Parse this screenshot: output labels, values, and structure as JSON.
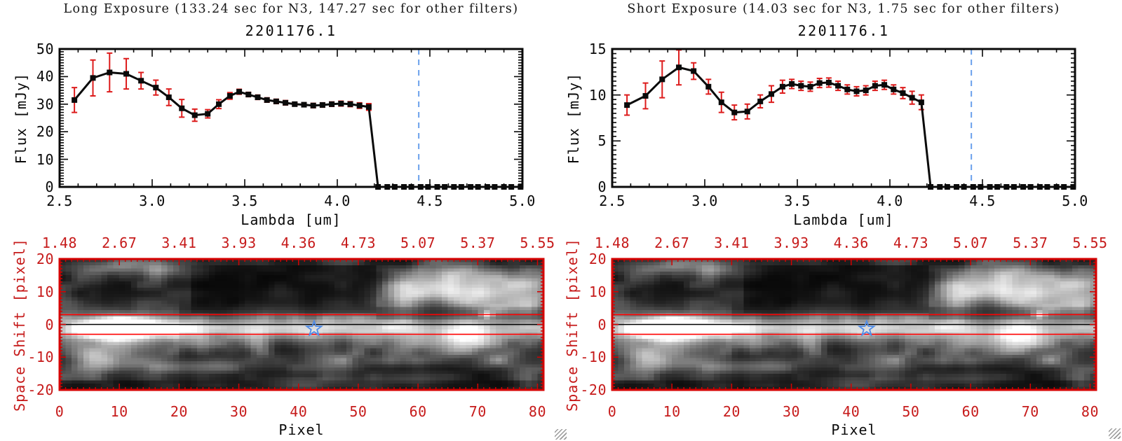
{
  "colors": {
    "background": "#ffffff",
    "black": "#0a0a0a",
    "red_text": "#c61a1a",
    "red_box": "#d40000",
    "red_line": "#ff0000",
    "red_dash": "#ff2222",
    "error_bar_red": "#dd1c1c",
    "blue_marker": "#4f8ce8",
    "blue_dash": "#6aa0ec",
    "grip_gray": "#9b9b9b"
  },
  "chart_data": [
    {
      "type": "line",
      "id": "spectrum_long",
      "panel": "left",
      "suptitle": "Long Exposure (133.24 sec for N3, 147.27 sec for other filters)",
      "title": "2201176.1",
      "xlabel": "Lambda [um]",
      "ylabel": "Flux [mJy]",
      "xlim": [
        2.5,
        5.0
      ],
      "ylim": [
        0,
        50
      ],
      "xticks": [
        "2.5",
        "3.0",
        "3.5",
        "4.0",
        "4.5",
        "5.0"
      ],
      "yticks": [
        "0",
        "10",
        "20",
        "30",
        "40",
        "50"
      ],
      "x_minor_step": 0.1,
      "y_minor_step": 1,
      "grid": false,
      "marker": "filled-square",
      "x": [
        2.58,
        2.68,
        2.77,
        2.86,
        2.94,
        3.02,
        3.09,
        3.16,
        3.23,
        3.3,
        3.36,
        3.42,
        3.47,
        3.52,
        3.57,
        3.62,
        3.67,
        3.72,
        3.77,
        3.82,
        3.87,
        3.92,
        3.97,
        4.02,
        4.07,
        4.12,
        4.17,
        4.22,
        4.27,
        4.31,
        4.36,
        4.4,
        4.45,
        4.49,
        4.54,
        4.58,
        4.63,
        4.67,
        4.72,
        4.76,
        4.81,
        4.85,
        4.9,
        4.94,
        4.99
      ],
      "y": [
        31.5,
        39.5,
        41.5,
        41.0,
        38.5,
        36.0,
        32.5,
        28.5,
        26.0,
        26.5,
        30.0,
        33.0,
        34.5,
        33.5,
        32.5,
        31.5,
        31.0,
        30.5,
        30.0,
        29.8,
        29.5,
        29.7,
        30.0,
        30.2,
        30.0,
        29.5,
        29.0,
        0,
        0,
        0,
        0,
        0,
        0,
        0,
        0,
        0,
        0,
        0,
        0,
        0,
        0,
        0,
        0,
        0,
        0
      ],
      "yerr": [
        4.5,
        6.5,
        7.0,
        5.5,
        3.0,
        2.7,
        3.0,
        3.2,
        2.2,
        1.5,
        1.6,
        1.2,
        0.9,
        0.8,
        0.8,
        0.8,
        0.8,
        0.8,
        0.7,
        0.7,
        0.8,
        0.8,
        0.8,
        0.9,
        0.9,
        1.0,
        1.2,
        0,
        0,
        0,
        0,
        0,
        0,
        0,
        0,
        0,
        0,
        0,
        0,
        0,
        0,
        0,
        0,
        0,
        0
      ],
      "vline": {
        "x": 4.44,
        "style": "dashed",
        "color": "#6aa0ec"
      },
      "zero_line": {
        "from": 4.19,
        "to": 5.0,
        "y": 0,
        "style": "dashed",
        "color": "#ff2222"
      }
    },
    {
      "type": "line",
      "id": "spectrum_short",
      "panel": "right",
      "suptitle": "Short Exposure (14.03 sec for N3, 1.75 sec for other filters)",
      "title": "2201176.1",
      "xlabel": "Lambda [um]",
      "ylabel": "Flux [mJy]",
      "xlim": [
        2.5,
        5.0
      ],
      "ylim": [
        0,
        15
      ],
      "xticks": [
        "2.5",
        "3.0",
        "3.5",
        "4.0",
        "4.5",
        "5.0"
      ],
      "yticks": [
        "0",
        "5",
        "10",
        "15"
      ],
      "x_minor_step": 0.1,
      "y_minor_step": 0.5,
      "grid": false,
      "marker": "filled-square",
      "x": [
        2.58,
        2.68,
        2.77,
        2.86,
        2.94,
        3.02,
        3.09,
        3.16,
        3.23,
        3.3,
        3.36,
        3.42,
        3.47,
        3.52,
        3.57,
        3.62,
        3.67,
        3.72,
        3.77,
        3.82,
        3.87,
        3.92,
        3.97,
        4.02,
        4.07,
        4.12,
        4.17,
        4.22,
        4.27,
        4.31,
        4.36,
        4.4,
        4.45,
        4.49,
        4.54,
        4.58,
        4.63,
        4.67,
        4.72,
        4.76,
        4.81,
        4.85,
        4.9,
        4.94,
        4.99
      ],
      "y": [
        8.9,
        9.9,
        11.7,
        13.0,
        12.6,
        10.9,
        9.2,
        8.1,
        8.2,
        9.3,
        10.1,
        10.9,
        11.2,
        11.0,
        10.9,
        11.3,
        11.35,
        11.0,
        10.6,
        10.4,
        10.5,
        11.0,
        11.1,
        10.6,
        10.2,
        9.7,
        9.2,
        0,
        0,
        0,
        0,
        0,
        0,
        0,
        0,
        0,
        0,
        0,
        0,
        0,
        0,
        0,
        0,
        0,
        0
      ],
      "yerr": [
        1.1,
        1.4,
        2.0,
        1.9,
        0.9,
        0.8,
        1.1,
        0.8,
        0.8,
        0.7,
        0.9,
        0.7,
        0.5,
        0.5,
        0.5,
        0.5,
        0.5,
        0.5,
        0.5,
        0.5,
        0.5,
        0.5,
        0.5,
        0.5,
        0.6,
        0.7,
        0.8,
        0,
        0,
        0,
        0,
        0,
        0,
        0,
        0,
        0,
        0,
        0,
        0,
        0,
        0,
        0,
        0,
        0,
        0
      ],
      "vline": {
        "x": 4.44,
        "style": "dashed",
        "color": "#6aa0ec"
      },
      "zero_line": {
        "from": 4.19,
        "to": 5.0,
        "y": 0,
        "style": "dashed",
        "color": "#ff2222"
      }
    },
    {
      "type": "heatmap",
      "id": "spectral_image",
      "appears_in_panels": [
        "left",
        "right"
      ],
      "note": "identical grayscale 2D spectral image shown under both spectra",
      "xlabel": "Pixel",
      "ylabel": "Space Shift [pixel]",
      "xlim": [
        0,
        81
      ],
      "ylim": [
        -20,
        20
      ],
      "xticks": [
        "0",
        "10",
        "20",
        "30",
        "40",
        "50",
        "60",
        "70",
        "80"
      ],
      "yticks": [
        "20",
        "10",
        "0",
        "-10",
        "-20"
      ],
      "top_axis_ticks": [
        "1.48",
        "2.67",
        "3.41",
        "3.93",
        "4.36",
        "4.73",
        "5.07",
        "5.37",
        "5.55"
      ],
      "aperture_lines_y": [
        3,
        -3
      ],
      "center_line_y": 0,
      "star_marker": {
        "x": 42.6,
        "y": -1.3
      },
      "description": "Bright horizontal spectral trace near y=0, brightest blob around pixel 8-14, fading toward pixel 81; diffuse bright clouds upper-right; patchy dark background; small bright dot on upper red line near pixel 71.",
      "procedural": {
        "seed": 7,
        "cols": 81,
        "rows": 41,
        "trace_row": 21.3,
        "trace_sigma": 2.35,
        "trace_amps": [
          [
            0,
            115
          ],
          [
            5,
            180
          ],
          [
            9,
            235
          ],
          [
            13,
            190
          ],
          [
            18,
            168
          ],
          [
            30,
            158
          ],
          [
            45,
            150
          ],
          [
            55,
            138
          ],
          [
            62,
            118
          ],
          [
            68,
            135
          ],
          [
            74,
            112
          ],
          [
            81,
            95
          ]
        ],
        "blobs": [
          [
            10,
            21.5,
            3.8,
            2.6,
            150
          ],
          [
            62,
            8,
            5.5,
            3.2,
            120
          ],
          [
            70,
            11,
            5,
            3,
            130
          ],
          [
            76,
            7,
            4,
            2.5,
            105
          ],
          [
            66,
            4,
            4,
            2,
            85
          ],
          [
            79,
            12,
            3,
            2.5,
            95
          ],
          [
            57,
            12,
            3,
            2.5,
            75
          ],
          [
            73,
            15,
            4,
            1.8,
            70
          ],
          [
            71,
            17,
            0.65,
            0.65,
            185
          ],
          [
            33,
            26.5,
            1.4,
            3.5,
            70
          ],
          [
            47,
            31,
            2.5,
            2,
            55
          ],
          [
            64,
            26,
            6,
            2.5,
            70
          ],
          [
            67,
            25,
            4,
            2.5,
            60
          ],
          [
            74,
            31,
            3,
            2,
            45
          ],
          [
            10,
            28,
            6,
            2.5,
            70
          ],
          [
            12,
            33,
            9,
            1.6,
            65
          ],
          [
            26,
            33,
            5,
            1.6,
            50
          ],
          [
            4,
            29,
            3,
            2,
            60
          ],
          [
            8,
            2,
            6,
            1.6,
            65
          ],
          [
            18,
            3,
            4,
            1.6,
            55
          ],
          [
            40,
            38,
            6,
            1.5,
            40
          ],
          [
            58,
            37,
            5,
            1.6,
            50
          ]
        ],
        "dark_zones": [
          [
            22,
            52,
            2,
            16,
            0.5
          ],
          [
            53,
            81,
            15,
            18,
            0.55
          ],
          [
            0,
            81,
            38,
            40,
            0.65
          ]
        ]
      }
    }
  ],
  "window": {
    "resize_grip_count": 2
  }
}
